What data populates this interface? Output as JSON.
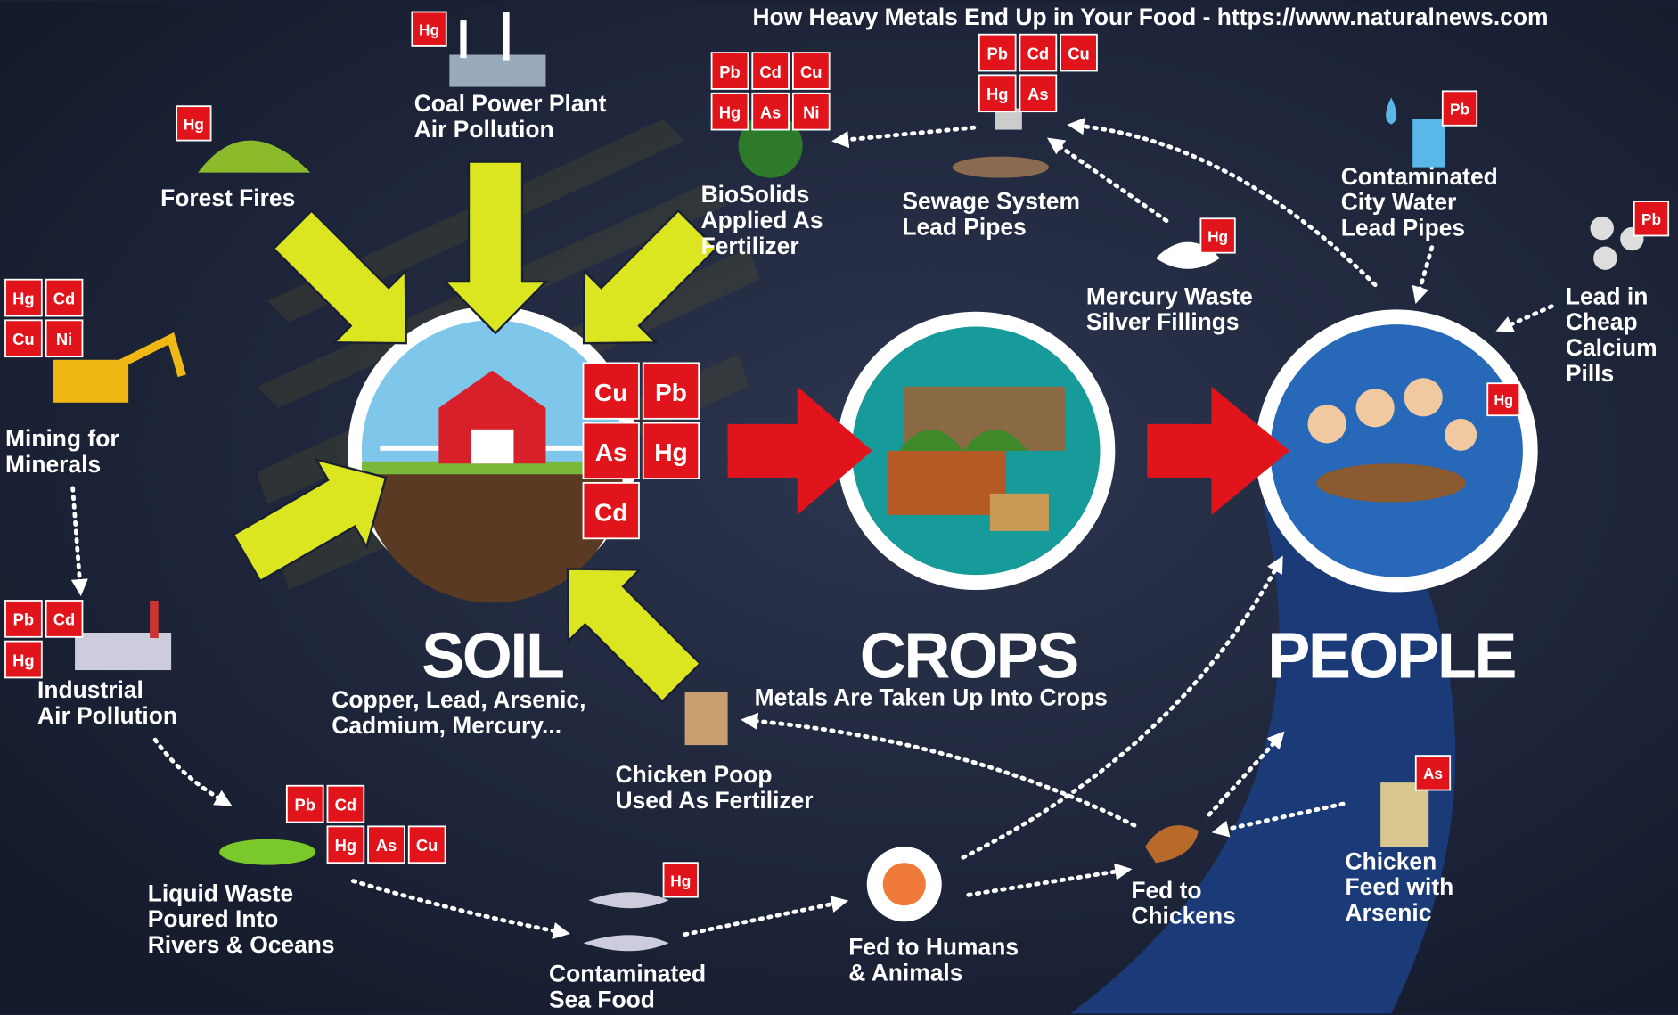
{
  "title": "How Heavy Metals End Up in Your Food - https://www.naturalnews.com",
  "nodes": [
    {
      "name": "SOIL",
      "caption": [
        "Copper, Lead, Arsenic,",
        "Cadmium, Mercury..."
      ],
      "badges": [
        "Cu",
        "Pb",
        "As",
        "Hg",
        "Cd"
      ]
    },
    {
      "name": "CROPS",
      "caption": [
        "Metals Are Taken Up Into Crops"
      ]
    },
    {
      "name": "PEOPLE",
      "badges": [
        "Hg"
      ]
    }
  ],
  "sources": [
    {
      "label": [
        "Forest Fires"
      ],
      "badges": [
        "Hg"
      ]
    },
    {
      "label": [
        "Coal Power Plant",
        "Air Pollution"
      ],
      "badges": [
        "Hg"
      ]
    },
    {
      "label": [
        "BioSolids",
        "Applied As",
        "Fertilizer"
      ],
      "badges": [
        "Pb",
        "Cd",
        "Cu",
        "Hg",
        "As",
        "Ni"
      ]
    },
    {
      "label": [
        "Sewage System",
        "Lead Pipes"
      ],
      "badges": [
        "Pb",
        "Cd",
        "Cu",
        "Hg",
        "As"
      ]
    },
    {
      "label": [
        "Mercury Waste",
        "Silver Fillings"
      ],
      "badges": [
        "Hg"
      ]
    },
    {
      "label": [
        "Contaminated",
        "City Water",
        "Lead Pipes"
      ],
      "badges": [
        "Pb"
      ]
    },
    {
      "label": [
        "Lead in",
        "Cheap",
        "Calcium",
        "Pills"
      ],
      "badges": [
        "Pb"
      ]
    },
    {
      "label": [
        "Mining for",
        "Minerals"
      ],
      "badges": [
        "Hg",
        "Cd",
        "Cu",
        "Ni"
      ]
    },
    {
      "label": [
        "Industrial",
        "Air Pollution"
      ],
      "badges": [
        "Pb",
        "Cd",
        "Hg"
      ]
    },
    {
      "label": [
        "Liquid Waste",
        "Poured Into",
        "Rivers & Oceans"
      ],
      "badges": [
        "Pb",
        "Cd",
        "Hg",
        "As",
        "Cu"
      ]
    },
    {
      "label": [
        "Contaminated",
        "Sea Food"
      ],
      "badges": [
        "Hg"
      ]
    },
    {
      "label": [
        "Fed to Humans",
        "& Animals"
      ],
      "badges": []
    },
    {
      "label": [
        "Fed to",
        "Chickens"
      ],
      "badges": []
    },
    {
      "label": [
        "Chicken",
        "Feed with",
        "Arsenic"
      ],
      "badges": [
        "As"
      ]
    },
    {
      "label": [
        "Chicken Poop",
        "Used As Fertilizer"
      ],
      "badges": []
    }
  ]
}
